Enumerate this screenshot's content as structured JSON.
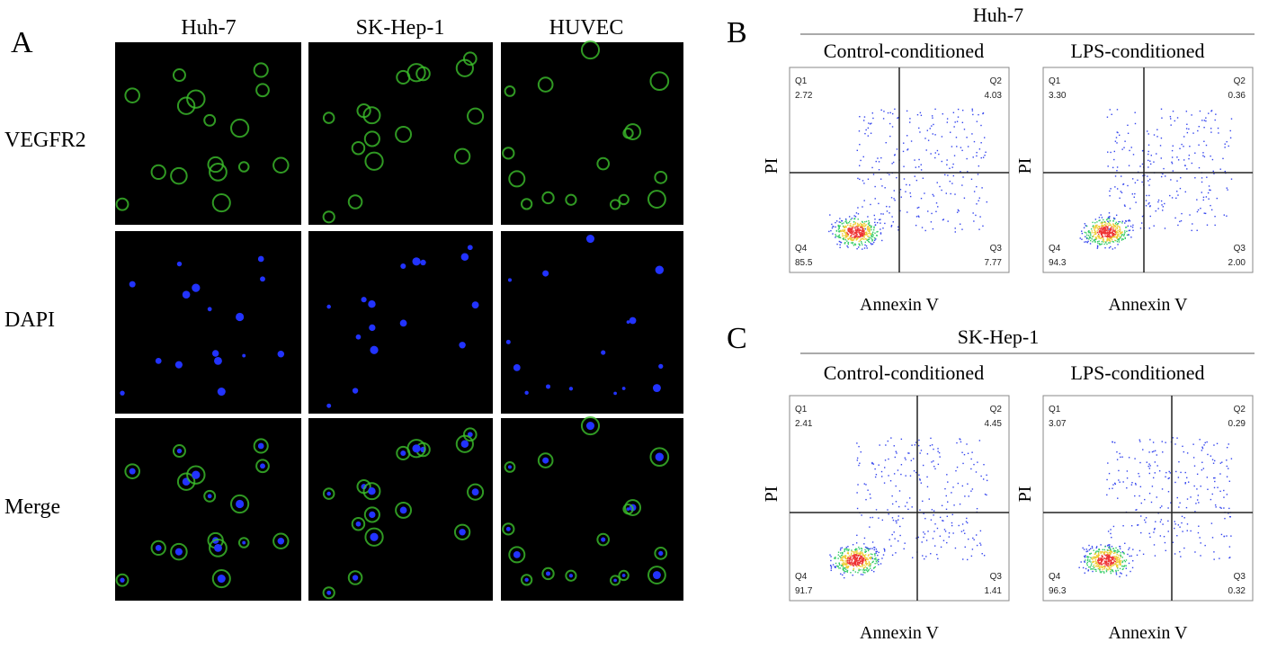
{
  "panel_a": {
    "label": "A",
    "columns": [
      "Huh-7",
      "SK-Hep-1",
      "HUVEC"
    ],
    "rows": [
      "VEGFR2",
      "DAPI",
      "Merge"
    ]
  },
  "panel_b": {
    "label": "B",
    "title": "Huh-7",
    "plots": [
      {
        "title": "Control-conditioned",
        "x_label": "Annexin V",
        "y_label": "PI",
        "quadrants": [
          {
            "name": "Q1",
            "value": "2.72"
          },
          {
            "name": "Q2",
            "value": "4.03"
          },
          {
            "name": "Q3",
            "value": "7.77"
          },
          {
            "name": "Q4",
            "value": "85.5"
          }
        ]
      },
      {
        "title": "LPS-conditioned",
        "x_label": "Annexin V",
        "y_label": "PI",
        "quadrants": [
          {
            "name": "Q1",
            "value": "3.30"
          },
          {
            "name": "Q2",
            "value": "0.36"
          },
          {
            "name": "Q3",
            "value": "2.00"
          },
          {
            "name": "Q4",
            "value": "94.3"
          }
        ]
      }
    ]
  },
  "panel_c": {
    "label": "C",
    "title": "SK-Hep-1",
    "plots": [
      {
        "title": "Control-conditioned",
        "x_label": "Annexin V",
        "y_label": "PI",
        "quadrants": [
          {
            "name": "Q1",
            "value": "2.41"
          },
          {
            "name": "Q2",
            "value": "4.45"
          },
          {
            "name": "Q3",
            "value": "1.41"
          },
          {
            "name": "Q4",
            "value": "91.7"
          }
        ]
      },
      {
        "title": "LPS-conditioned",
        "x_label": "Annexin V",
        "y_label": "PI",
        "quadrants": [
          {
            "name": "Q1",
            "value": "3.07"
          },
          {
            "name": "Q2",
            "value": "0.29"
          },
          {
            "name": "Q3",
            "value": "0.32"
          },
          {
            "name": "Q4",
            "value": "96.3"
          }
        ]
      }
    ]
  }
}
